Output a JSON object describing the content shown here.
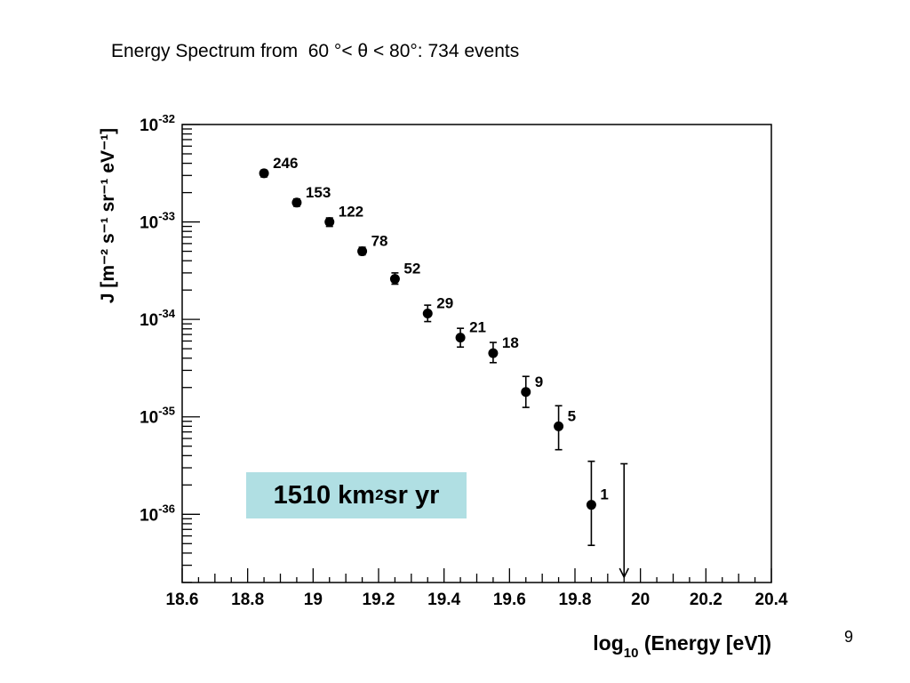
{
  "slide": {
    "title": "Energy Spectrum from  60 °< θ < 80°: 734 events",
    "page_number": "9",
    "annotation": {
      "value": "1510 km",
      "sup": "2",
      "rest": " sr yr"
    }
  },
  "chart_data": {
    "type": "scatter",
    "title": "",
    "xlabel": {
      "base": "log",
      "sub": "10",
      "rest": " (Energy [eV])"
    },
    "ylabel": "J [m⁻² s⁻¹ sr⁻¹ eV⁻¹]",
    "xlim": [
      18.6,
      20.4
    ],
    "ylim_log10": [
      -36.7,
      -32
    ],
    "y_scale": "log",
    "grid": false,
    "x_ticks": [
      "18.6",
      "18.8",
      "19",
      "19.2",
      "19.4",
      "19.6",
      "19.8",
      "20",
      "20.2",
      "20.4"
    ],
    "y_ticks": [
      {
        "base": "10",
        "exp": "-32"
      },
      {
        "base": "10",
        "exp": "-33"
      },
      {
        "base": "10",
        "exp": "-34"
      },
      {
        "base": "10",
        "exp": "-35"
      },
      {
        "base": "10",
        "exp": "-36"
      }
    ],
    "points": [
      {
        "x": 18.85,
        "y": 3.16e-33,
        "err_lo": 2.9e-33,
        "err_hi": 3.4e-33,
        "label": "246"
      },
      {
        "x": 18.95,
        "y": 1.58e-33,
        "err_lo": 1.45e-33,
        "err_hi": 1.72e-33,
        "label": "153"
      },
      {
        "x": 19.05,
        "y": 1e-33,
        "err_lo": 9e-34,
        "err_hi": 1.1e-33,
        "label": "122"
      },
      {
        "x": 19.15,
        "y": 5e-34,
        "err_lo": 4.6e-34,
        "err_hi": 5.5e-34,
        "label": "78"
      },
      {
        "x": 19.25,
        "y": 2.6e-34,
        "err_lo": 2.3e-34,
        "err_hi": 3e-34,
        "label": "52"
      },
      {
        "x": 19.35,
        "y": 1.15e-34,
        "err_lo": 9.5e-35,
        "err_hi": 1.4e-34,
        "label": "29"
      },
      {
        "x": 19.45,
        "y": 6.5e-35,
        "err_lo": 5.2e-35,
        "err_hi": 8.1e-35,
        "label": "21"
      },
      {
        "x": 19.55,
        "y": 4.5e-35,
        "err_lo": 3.6e-35,
        "err_hi": 5.8e-35,
        "label": "18"
      },
      {
        "x": 19.65,
        "y": 1.8e-35,
        "err_lo": 1.25e-35,
        "err_hi": 2.6e-35,
        "label": "9"
      },
      {
        "x": 19.75,
        "y": 8e-36,
        "err_lo": 4.6e-36,
        "err_hi": 1.3e-35,
        "label": "5"
      },
      {
        "x": 19.85,
        "y": 1.25e-36,
        "err_lo": 4.8e-37,
        "err_hi": 3.5e-36,
        "label": "1"
      }
    ],
    "upper_limits": [
      {
        "x": 19.95,
        "y": 3.3e-36
      }
    ],
    "colors": {
      "marker": "#000000",
      "annotation_bg": "#b0dfe3"
    }
  }
}
